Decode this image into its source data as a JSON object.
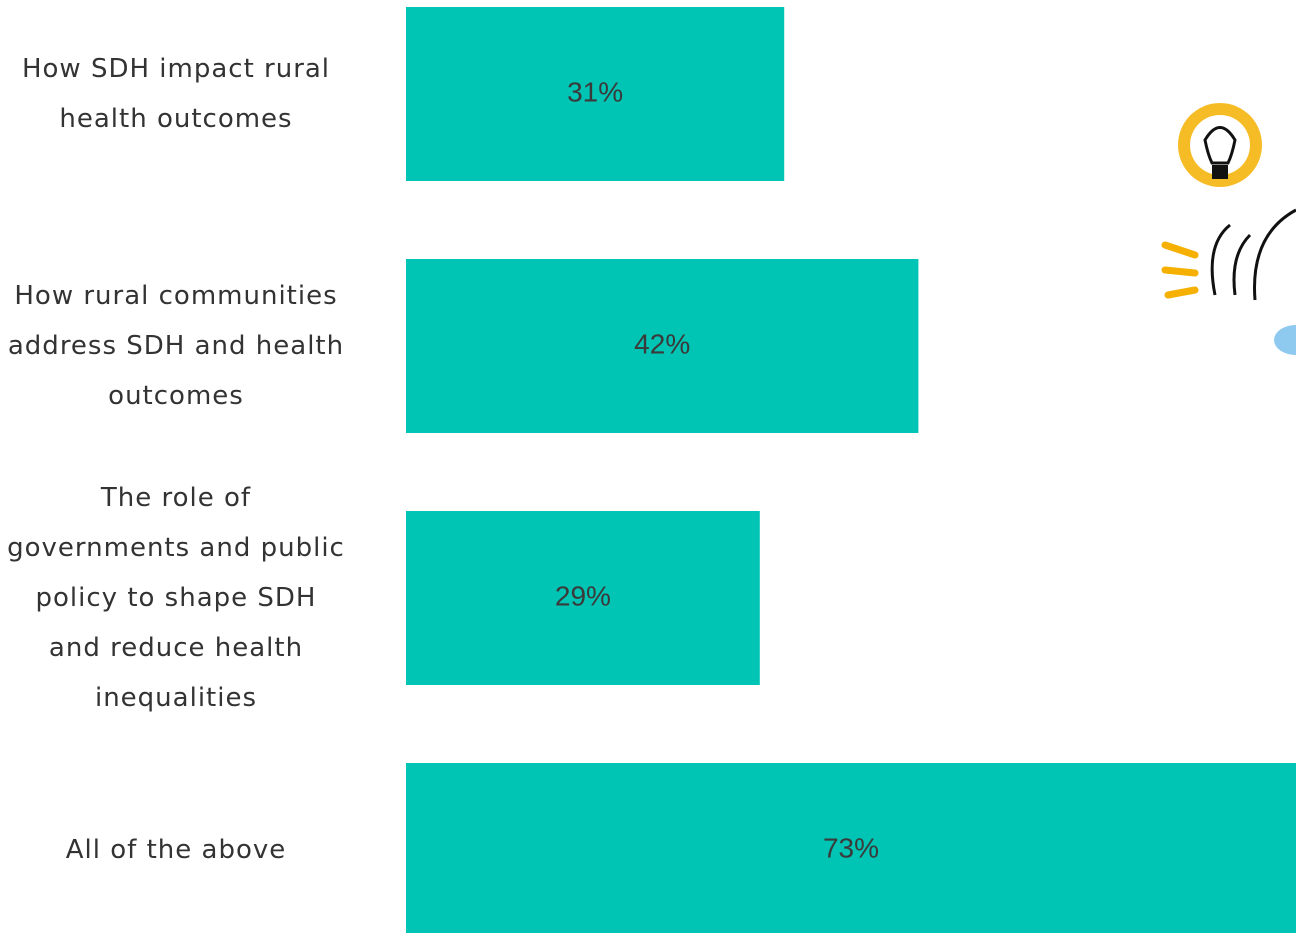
{
  "chart_data": {
    "type": "bar",
    "orientation": "horizontal",
    "categories": [
      "How SDH impact rural health outcomes",
      "How rural communities address SDH and health outcomes",
      "The role of governments and public policy to shape SDH and reduce health inequalities",
      "All of the above"
    ],
    "values": [
      31,
      42,
      29,
      73
    ],
    "value_labels": [
      "31%",
      "42%",
      "29%",
      "73%"
    ],
    "color": "#00c4b4"
  }
}
